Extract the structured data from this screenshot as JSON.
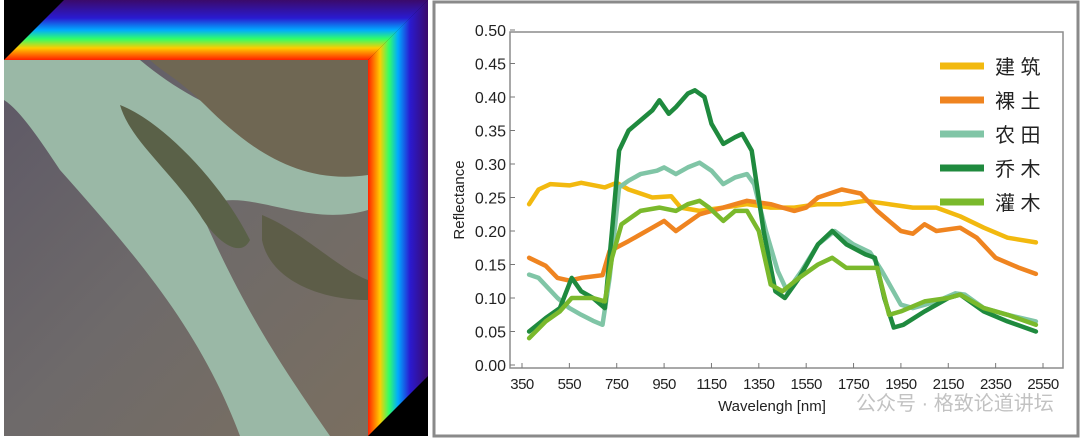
{
  "figure": {
    "left_panel": "hyperspectral-cube-image",
    "watermark": "公众号 · 格致论道讲坛"
  },
  "chart_data": {
    "type": "line",
    "title": "",
    "xlabel": "Wavelengh [nm]",
    "ylabel": "Reflectance",
    "xlim": [
      350,
      2550
    ],
    "ylim": [
      0,
      0.5
    ],
    "xticks": [
      "350",
      "550",
      "750",
      "950",
      "1150",
      "1350",
      "1550",
      "1750",
      "1950",
      "2150",
      "2350",
      "2550"
    ],
    "yticks": [
      "0.00",
      "0.05",
      "0.10",
      "0.15",
      "0.20",
      "0.25",
      "0.30",
      "0.35",
      "0.40",
      "0.45",
      "0.50"
    ],
    "legend_position": "top-right",
    "grid": false,
    "series": [
      {
        "name": "建 筑",
        "color": "#f2b90f",
        "points": [
          [
            380,
            0.24
          ],
          [
            420,
            0.262
          ],
          [
            470,
            0.27
          ],
          [
            550,
            0.268
          ],
          [
            600,
            0.272
          ],
          [
            700,
            0.265
          ],
          [
            750,
            0.272
          ],
          [
            800,
            0.262
          ],
          [
            900,
            0.25
          ],
          [
            980,
            0.252
          ],
          [
            1020,
            0.235
          ],
          [
            1100,
            0.23
          ],
          [
            1200,
            0.235
          ],
          [
            1300,
            0.24
          ],
          [
            1400,
            0.235
          ],
          [
            1500,
            0.235
          ],
          [
            1600,
            0.24
          ],
          [
            1700,
            0.24
          ],
          [
            1800,
            0.245
          ],
          [
            1900,
            0.24
          ],
          [
            2000,
            0.235
          ],
          [
            2100,
            0.235
          ],
          [
            2200,
            0.222
          ],
          [
            2300,
            0.205
          ],
          [
            2400,
            0.19
          ],
          [
            2520,
            0.183
          ]
        ]
      },
      {
        "name": "裸 土",
        "color": "#ef8420",
        "points": [
          [
            380,
            0.16
          ],
          [
            450,
            0.148
          ],
          [
            500,
            0.13
          ],
          [
            550,
            0.126
          ],
          [
            600,
            0.13
          ],
          [
            690,
            0.134
          ],
          [
            720,
            0.17
          ],
          [
            800,
            0.185
          ],
          [
            900,
            0.205
          ],
          [
            950,
            0.215
          ],
          [
            1000,
            0.2
          ],
          [
            1100,
            0.225
          ],
          [
            1200,
            0.235
          ],
          [
            1300,
            0.245
          ],
          [
            1400,
            0.24
          ],
          [
            1450,
            0.235
          ],
          [
            1500,
            0.23
          ],
          [
            1550,
            0.235
          ],
          [
            1600,
            0.25
          ],
          [
            1700,
            0.262
          ],
          [
            1780,
            0.256
          ],
          [
            1850,
            0.23
          ],
          [
            1950,
            0.2
          ],
          [
            2000,
            0.196
          ],
          [
            2050,
            0.21
          ],
          [
            2100,
            0.2
          ],
          [
            2200,
            0.205
          ],
          [
            2270,
            0.19
          ],
          [
            2350,
            0.16
          ],
          [
            2450,
            0.145
          ],
          [
            2520,
            0.136
          ]
        ]
      },
      {
        "name": "农 田",
        "color": "#80c5a6",
        "points": [
          [
            380,
            0.135
          ],
          [
            420,
            0.13
          ],
          [
            500,
            0.1
          ],
          [
            550,
            0.085
          ],
          [
            600,
            0.075
          ],
          [
            650,
            0.066
          ],
          [
            690,
            0.06
          ],
          [
            720,
            0.13
          ],
          [
            760,
            0.265
          ],
          [
            800,
            0.275
          ],
          [
            850,
            0.285
          ],
          [
            920,
            0.29
          ],
          [
            950,
            0.295
          ],
          [
            1000,
            0.285
          ],
          [
            1050,
            0.295
          ],
          [
            1100,
            0.302
          ],
          [
            1150,
            0.29
          ],
          [
            1200,
            0.27
          ],
          [
            1250,
            0.28
          ],
          [
            1300,
            0.285
          ],
          [
            1330,
            0.27
          ],
          [
            1380,
            0.2
          ],
          [
            1430,
            0.14
          ],
          [
            1470,
            0.11
          ],
          [
            1530,
            0.14
          ],
          [
            1600,
            0.18
          ],
          [
            1670,
            0.2
          ],
          [
            1750,
            0.18
          ],
          [
            1820,
            0.168
          ],
          [
            1870,
            0.14
          ],
          [
            1950,
            0.09
          ],
          [
            2000,
            0.085
          ],
          [
            2100,
            0.095
          ],
          [
            2180,
            0.107
          ],
          [
            2220,
            0.105
          ],
          [
            2300,
            0.085
          ],
          [
            2400,
            0.075
          ],
          [
            2520,
            0.065
          ]
        ]
      },
      {
        "name": "乔 木",
        "color": "#1f8a3e",
        "points": [
          [
            380,
            0.05
          ],
          [
            450,
            0.07
          ],
          [
            510,
            0.085
          ],
          [
            560,
            0.13
          ],
          [
            600,
            0.11
          ],
          [
            650,
            0.1
          ],
          [
            700,
            0.085
          ],
          [
            730,
            0.2
          ],
          [
            760,
            0.32
          ],
          [
            800,
            0.35
          ],
          [
            850,
            0.365
          ],
          [
            900,
            0.38
          ],
          [
            930,
            0.395
          ],
          [
            970,
            0.375
          ],
          [
            1000,
            0.385
          ],
          [
            1050,
            0.405
          ],
          [
            1080,
            0.41
          ],
          [
            1120,
            0.4
          ],
          [
            1150,
            0.36
          ],
          [
            1200,
            0.33
          ],
          [
            1250,
            0.34
          ],
          [
            1280,
            0.345
          ],
          [
            1320,
            0.32
          ],
          [
            1370,
            0.2
          ],
          [
            1420,
            0.11
          ],
          [
            1460,
            0.1
          ],
          [
            1520,
            0.13
          ],
          [
            1600,
            0.18
          ],
          [
            1660,
            0.2
          ],
          [
            1720,
            0.18
          ],
          [
            1800,
            0.165
          ],
          [
            1840,
            0.16
          ],
          [
            1880,
            0.1
          ],
          [
            1920,
            0.056
          ],
          [
            1960,
            0.06
          ],
          [
            2050,
            0.08
          ],
          [
            2150,
            0.1
          ],
          [
            2200,
            0.105
          ],
          [
            2300,
            0.08
          ],
          [
            2400,
            0.065
          ],
          [
            2520,
            0.05
          ]
        ]
      },
      {
        "name": "灌 木",
        "color": "#7ab92c",
        "points": [
          [
            380,
            0.04
          ],
          [
            450,
            0.065
          ],
          [
            510,
            0.08
          ],
          [
            560,
            0.1
          ],
          [
            650,
            0.1
          ],
          [
            700,
            0.095
          ],
          [
            730,
            0.16
          ],
          [
            770,
            0.21
          ],
          [
            850,
            0.23
          ],
          [
            930,
            0.235
          ],
          [
            1000,
            0.23
          ],
          [
            1050,
            0.24
          ],
          [
            1100,
            0.245
          ],
          [
            1140,
            0.235
          ],
          [
            1200,
            0.215
          ],
          [
            1250,
            0.23
          ],
          [
            1300,
            0.23
          ],
          [
            1350,
            0.2
          ],
          [
            1400,
            0.12
          ],
          [
            1450,
            0.11
          ],
          [
            1520,
            0.13
          ],
          [
            1600,
            0.15
          ],
          [
            1660,
            0.16
          ],
          [
            1720,
            0.145
          ],
          [
            1800,
            0.145
          ],
          [
            1850,
            0.145
          ],
          [
            1900,
            0.075
          ],
          [
            1950,
            0.08
          ],
          [
            2050,
            0.095
          ],
          [
            2150,
            0.1
          ],
          [
            2200,
            0.105
          ],
          [
            2300,
            0.085
          ],
          [
            2400,
            0.075
          ],
          [
            2520,
            0.06
          ]
        ]
      }
    ]
  }
}
